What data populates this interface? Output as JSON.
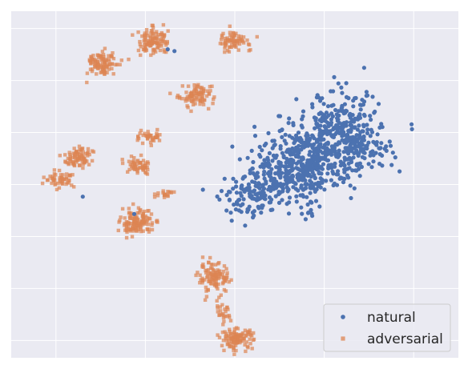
{
  "chart_data": {
    "type": "scatter",
    "title": "",
    "xlabel": "",
    "ylabel": "",
    "xlim": [
      -100,
      100
    ],
    "ylim": [
      -100,
      100
    ],
    "grid": true,
    "tick_labels_shown": false,
    "legend_placement": "lower-right",
    "series": [
      {
        "name": "natural",
        "color": "#4c72b0",
        "marker": "circle",
        "clusters": [
          {
            "cx": 32,
            "cy": 14,
            "sx": 11,
            "sy": 9,
            "n": 380
          },
          {
            "cx": 47,
            "cy": 31,
            "sx": 9,
            "sy": 11,
            "n": 260
          },
          {
            "cx": 57,
            "cy": 20,
            "sx": 7,
            "sy": 6,
            "n": 90
          },
          {
            "cx": 20,
            "cy": 2,
            "sx": 8,
            "sy": 5,
            "n": 110
          },
          {
            "cx": 7,
            "cy": -9,
            "sx": 7,
            "sy": 5,
            "n": 90
          },
          {
            "cx": 32,
            "cy": -10,
            "sx": 4,
            "sy": 7,
            "n": 25
          }
        ],
        "outliers": [
          {
            "x": -68,
            "y": -7
          },
          {
            "x": -45,
            "y": -17
          },
          {
            "x": -30,
            "y": 78
          },
          {
            "x": -27,
            "y": 77
          }
        ]
      },
      {
        "name": "adversarial",
        "color": "#dd8452",
        "marker": "square",
        "clusters": [
          {
            "cx": -59,
            "cy": 70,
            "sx": 3.6,
            "sy": 3.6,
            "n": 100
          },
          {
            "cx": -36,
            "cy": 83,
            "sx": 3.6,
            "sy": 3.8,
            "n": 110
          },
          {
            "cx": 0,
            "cy": 83,
            "sx": 3.4,
            "sy": 3.0,
            "n": 70
          },
          {
            "cx": -17,
            "cy": 51,
            "sx": 3.5,
            "sy": 3.0,
            "n": 90
          },
          {
            "cx": -38,
            "cy": 28,
            "sx": 2.5,
            "sy": 1.6,
            "n": 40
          },
          {
            "cx": -43,
            "cy": 11,
            "sx": 2.8,
            "sy": 2.6,
            "n": 55
          },
          {
            "cx": -32,
            "cy": -6,
            "sx": 2.4,
            "sy": 1.1,
            "n": 20
          },
          {
            "cx": -70,
            "cy": 16,
            "sx": 3.0,
            "sy": 3.6,
            "n": 80
          },
          {
            "cx": -78,
            "cy": 3,
            "sx": 3.4,
            "sy": 2.6,
            "n": 50
          },
          {
            "cx": -44,
            "cy": -22,
            "sx": 3.6,
            "sy": 3.6,
            "n": 130
          },
          {
            "cx": -9,
            "cy": -54,
            "sx": 3.6,
            "sy": 4.2,
            "n": 110
          },
          {
            "cx": -6,
            "cy": -75,
            "sx": 2.0,
            "sy": 3.0,
            "n": 25
          },
          {
            "cx": 1,
            "cy": -89,
            "sx": 3.6,
            "sy": 2.8,
            "n": 110
          }
        ]
      }
    ]
  }
}
